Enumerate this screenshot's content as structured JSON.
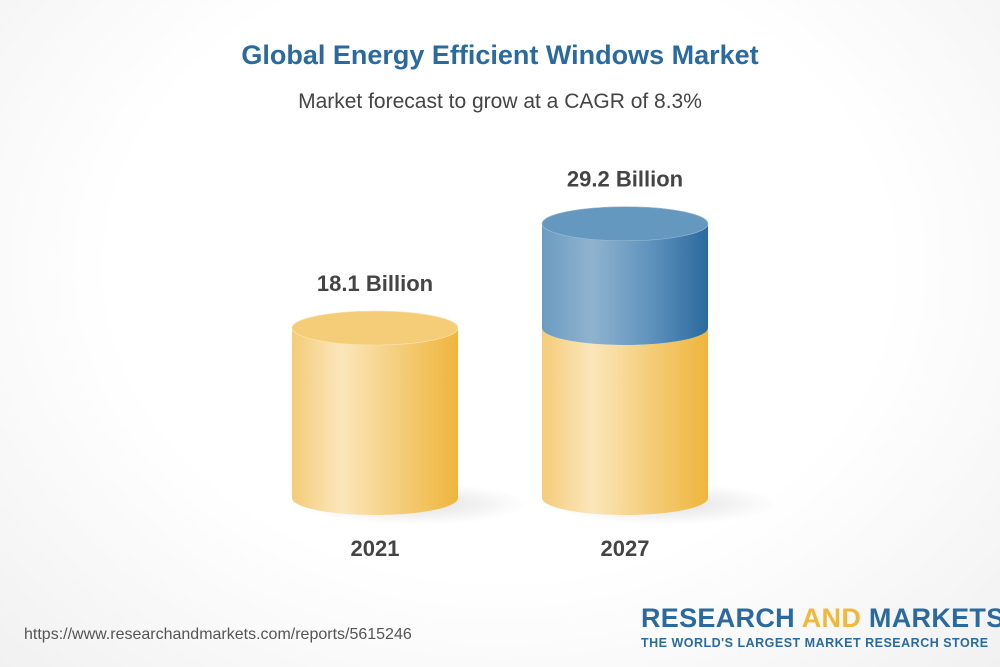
{
  "chart_data": {
    "type": "bar",
    "style": "3d-cylinder",
    "title": "Global Energy Efficient Windows Market",
    "subtitle": "Market forecast to grow at a CAGR of 8.3%",
    "categories": [
      "2021",
      "2027"
    ],
    "values": [
      18.1,
      29.2
    ],
    "data_labels": [
      "18.1 Billion",
      "29.2 Billion"
    ],
    "unit": "Billion",
    "grid": false,
    "colors": {
      "base": "#f1b93b",
      "growth": "#2b6a9e"
    }
  },
  "footer": {
    "url": "https://www.researchandmarkets.com/reports/5615246",
    "logo": {
      "part1": "RESEARCH ",
      "part2": "AND",
      "part3": " MARKETS",
      "tagline": "THE WORLD'S LARGEST MARKET RESEARCH STORE"
    }
  }
}
